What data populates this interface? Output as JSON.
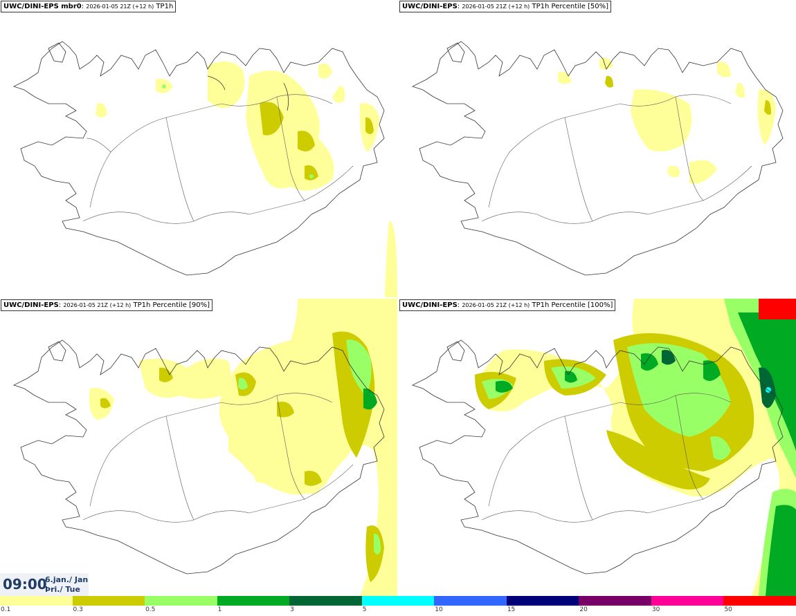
{
  "panels": [
    {
      "model": "UWC/DINI-EPS mbr0",
      "run": "2026-01-05 21Z (+12 h)",
      "field": "TP1h"
    },
    {
      "model": "UWC/DINI-EPS",
      "run": "2026-01-05 21Z (+12 h)",
      "field": "TP1h Percentile [50%]"
    },
    {
      "model": "UWC/DINI-EPS",
      "run": "2026-01-05 21Z (+12 h)",
      "field": "TP1h Percentile [90%]"
    },
    {
      "model": "UWC/DINI-EPS",
      "run": "2026-01-05 21Z (+12 h)",
      "field": "TP1h Percentile [100%]"
    }
  ],
  "time": {
    "clock": "09:00",
    "date_line1": "6.jan./ Jan",
    "date_line2": "Þri./ Tue"
  },
  "legend": {
    "colors": [
      "#ffff99",
      "#cccc00",
      "#99ff66",
      "#00aa22",
      "#006633",
      "#00ffff",
      "#3366ff",
      "#000077",
      "#770066",
      "#ff0099",
      "#ff0000"
    ],
    "labels": [
      "0.1",
      "0.3",
      "0.5",
      "1",
      "3",
      "5",
      "10",
      "15",
      "20",
      "30",
      "50"
    ]
  },
  "colors": {
    "coast": "#333333",
    "roads": "#555555"
  }
}
